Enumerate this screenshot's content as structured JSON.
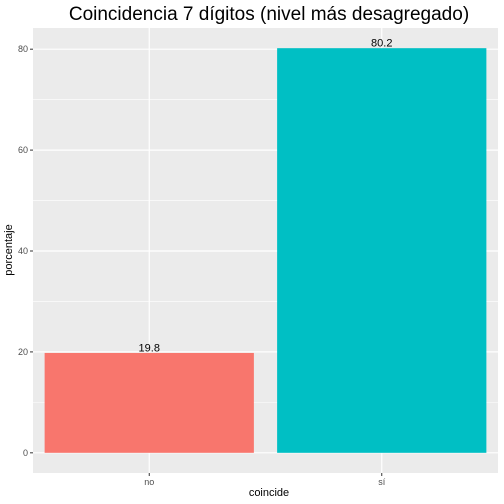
{
  "chart_data": {
    "type": "bar",
    "title": "Coincidencia 7 dígitos (nivel más desagregado)",
    "xlabel": "coincide",
    "ylabel": "porcentaje",
    "categories": [
      "no",
      "sí"
    ],
    "values": [
      19.8,
      80.2
    ],
    "value_labels": [
      "19.8",
      "80.2"
    ],
    "colors": [
      "#F8766D",
      "#00BFC4"
    ],
    "ylim": [
      -4,
      84.2
    ],
    "yticks": [
      0,
      20,
      40,
      60,
      80
    ],
    "ytick_labels": [
      "0",
      "20",
      "40",
      "60",
      "80"
    ],
    "grid": true,
    "legend": "none",
    "panel_background": "#EBEBEB",
    "grid_color": "#FFFFFF"
  }
}
